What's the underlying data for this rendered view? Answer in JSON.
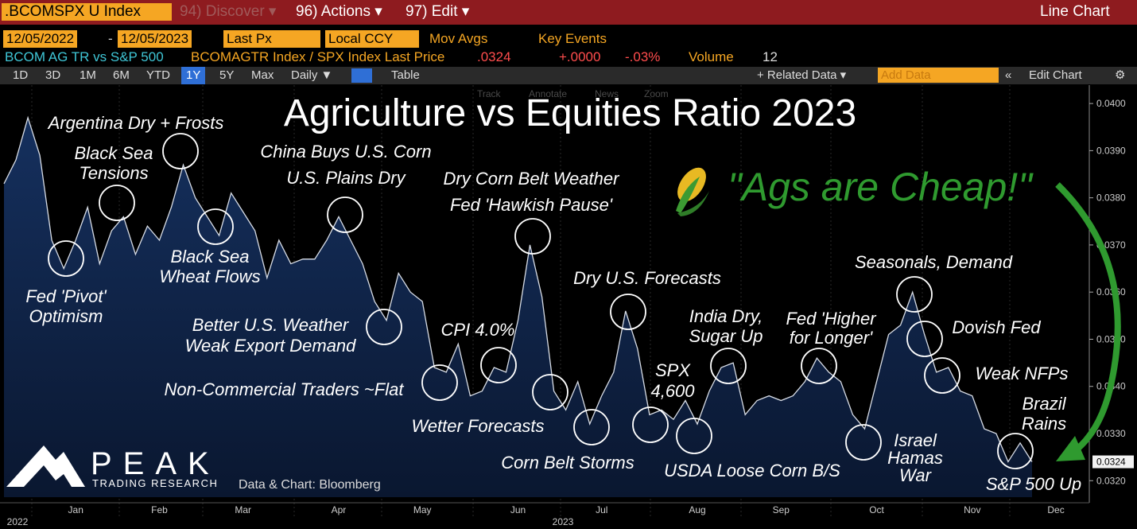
{
  "header": {
    "ticker": ".BCOMSPX U Index",
    "menu": [
      "94) Discover ▾",
      "96) Actions ▾",
      "97) Edit ▾"
    ],
    "view": "Line Chart",
    "start_date": "12/05/2022",
    "end_date": "12/05/2023",
    "field": "Last Px",
    "currency": "Local CCY",
    "options": [
      "Mov Avgs",
      "Key Events"
    ],
    "security": "BCOM AG TR vs S&P 500",
    "description": "BCOMAGTR Index / SPX Index Last Price",
    "last": ".0324",
    "change": "+.0000",
    "change_pct": "-.03%",
    "volume_label": "Volume",
    "volume": "12",
    "ranges": [
      "1D",
      "3D",
      "1M",
      "6M",
      "YTD",
      "1Y",
      "5Y",
      "Max"
    ],
    "frequency": "Daily ▼",
    "table": "Table",
    "related": "+ Related Data ▾",
    "add_data": "Add Data",
    "edit_chart": "Edit Chart",
    "tools": [
      "Track",
      "Annotate",
      "News",
      "Zoom"
    ]
  },
  "branding": {
    "name": "PEAK",
    "tagline": "TRADING RESEARCH",
    "source": "Data & Chart: Bloomberg"
  },
  "chart_data": {
    "type": "line",
    "title": "Agriculture vs Equities Ratio 2023",
    "callout": "\"Ags are Cheap!\"",
    "categories": [
      null,
      null,
      null,
      null,
      null,
      null,
      "Jan",
      null,
      null,
      null,
      null,
      null,
      null,
      "Feb",
      null,
      null,
      null,
      null,
      null,
      null,
      "Mar",
      null,
      null,
      null,
      null,
      null,
      null,
      null,
      "Apr",
      null,
      null,
      null,
      null,
      null,
      null,
      "May",
      null,
      null,
      null,
      null,
      null,
      null,
      null,
      "Jun",
      null,
      null,
      null,
      null,
      null,
      null,
      "Jul",
      null,
      null,
      null,
      null,
      null,
      null,
      null,
      "Aug",
      null,
      null,
      null,
      null,
      null,
      null,
      "Sep",
      null,
      null,
      null,
      null,
      null,
      null,
      null,
      "Oct",
      null,
      null,
      null,
      null,
      null,
      null,
      null,
      "Nov",
      null,
      null,
      null,
      null,
      null,
      null,
      "Dec"
    ],
    "year_labels": [
      "2022",
      "2023"
    ],
    "series": [
      {
        "name": "BCOMAGTR Index / SPX Index",
        "color": "#d8dde6",
        "values": [
          0.0383,
          0.0388,
          0.0397,
          0.0389,
          0.0371,
          0.0365,
          0.0371,
          0.0378,
          0.0366,
          0.0373,
          0.0376,
          0.0368,
          0.0374,
          0.0371,
          0.0378,
          0.0387,
          0.038,
          0.0376,
          0.0372,
          0.0381,
          0.0377,
          0.0373,
          0.0363,
          0.0371,
          0.0366,
          0.0367,
          0.0367,
          0.0371,
          0.0376,
          0.0371,
          0.0366,
          0.0358,
          0.0354,
          0.0364,
          0.036,
          0.0358,
          0.0344,
          0.0343,
          0.0349,
          0.0338,
          0.0339,
          0.0344,
          0.0343,
          0.0354,
          0.037,
          0.0359,
          0.0339,
          0.0335,
          0.0341,
          0.0332,
          0.0338,
          0.0343,
          0.0356,
          0.0348,
          0.0334,
          0.0335,
          0.0333,
          0.0337,
          0.0332,
          0.0339,
          0.0344,
          0.0345,
          0.0334,
          0.0337,
          0.0338,
          0.0337,
          0.0338,
          0.0341,
          0.0346,
          0.0343,
          0.0341,
          0.0334,
          0.0331,
          0.0341,
          0.0351,
          0.0353,
          0.036,
          0.0351,
          0.0343,
          0.0344,
          0.0339,
          0.0338,
          0.0331,
          0.033,
          0.0324,
          0.0328,
          0.0324,
          null,
          null
        ]
      }
    ],
    "last_label": "0.0324",
    "ylim": [
      0.03165,
      0.04039
    ],
    "yticks": [
      {
        "value": 0.032,
        "label": "0.0320"
      },
      {
        "value": 0.033,
        "label": "0.0330"
      },
      {
        "value": 0.034,
        "label": "0.0340"
      },
      {
        "value": 0.035,
        "label": "0.0350"
      },
      {
        "value": 0.036,
        "label": "0.0360"
      },
      {
        "value": 0.037,
        "label": "0.0370"
      },
      {
        "value": 0.038,
        "label": "0.0380"
      },
      {
        "value": 0.039,
        "label": "0.0390"
      },
      {
        "value": 0.04,
        "label": "0.0400"
      }
    ],
    "annotations": [
      [
        "Argentina Dry + Frosts"
      ],
      [
        "Black Sea",
        "Tensions"
      ],
      [
        "Fed 'Pivot'",
        "Optimism"
      ],
      [
        "Black Sea",
        "Wheat Flows"
      ],
      [
        "China Buys U.S. Corn",
        "U.S. Plains Dry"
      ],
      [
        "Better U.S. Weather",
        "Weak Export Demand"
      ],
      [
        "Non-Commercial Traders ~Flat"
      ],
      [
        "CPI 4.0%"
      ],
      [
        "Dry Corn Belt Weather",
        "Fed 'Hawkish Pause'"
      ],
      [
        "Wetter Forecasts"
      ],
      [
        "Corn Belt Storms"
      ],
      [
        "Dry U.S. Forecasts"
      ],
      [
        "SPX",
        "4,600"
      ],
      [
        "USDA Loose Corn B/S"
      ],
      [
        "India Dry,",
        "Sugar Up"
      ],
      [
        "Fed 'Higher",
        "for Longer'"
      ],
      [
        "Seasonals, Demand"
      ],
      [
        "Israel",
        "Hamas",
        "War"
      ],
      [
        "Dovish Fed"
      ],
      [
        "Weak NFPs"
      ],
      [
        "Brazil",
        "Rains"
      ],
      [
        "S&P 500 Up"
      ]
    ]
  }
}
